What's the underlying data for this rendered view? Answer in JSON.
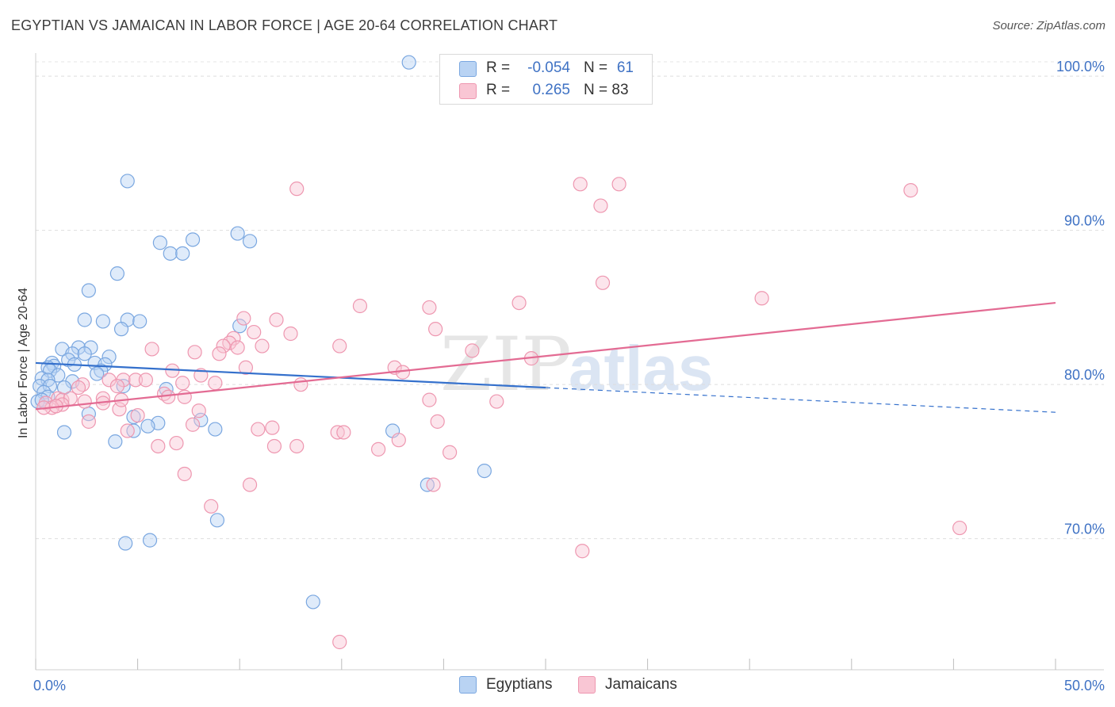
{
  "header": {
    "title": "EGYPTIAN VS JAMAICAN IN LABOR FORCE | AGE 20-64 CORRELATION CHART",
    "source": "Source: ZipAtlas.com"
  },
  "watermark": {
    "part1": "ZIP",
    "part2": "atlas"
  },
  "stats": [
    {
      "r_label": "R =",
      "r_value": "-0.054",
      "n_label": "N =",
      "n_value": "61",
      "fill": "#b9d3f3",
      "stroke": "#7aa7e0"
    },
    {
      "r_label": "R =",
      "r_value": "0.265",
      "n_label": "N = 83",
      "n_value": "",
      "fill": "#f9c6d4",
      "stroke": "#ee97b0"
    }
  ],
  "legend": [
    {
      "label": "Egyptians",
      "fill": "#b9d3f3",
      "stroke": "#7aa7e0"
    },
    {
      "label": "Jamaicans",
      "fill": "#f9c6d4",
      "stroke": "#ee97b0"
    }
  ],
  "chart_data": {
    "type": "scatter",
    "title": "EGYPTIAN VS JAMAICAN IN LABOR FORCE | AGE 20-64 CORRELATION CHART",
    "xlabel": "",
    "ylabel": "In Labor Force | Age 20-64",
    "xlim": [
      0,
      50
    ],
    "ylim": [
      61.5,
      101.5
    ],
    "grid": true,
    "legend_position": "bottom",
    "x_tick_labels": [
      {
        "value": 0,
        "label": "0.0%"
      },
      {
        "value": 50,
        "label": "50.0%"
      }
    ],
    "x_minor_ticks": [
      0,
      5,
      10,
      15,
      20,
      25,
      30,
      35,
      40,
      45,
      50
    ],
    "y_tick_labels": [
      {
        "value": 100,
        "label": "100.0%"
      },
      {
        "value": 90,
        "label": "90.0%"
      },
      {
        "value": 80,
        "label": "80.0%"
      },
      {
        "value": 70,
        "label": "70.0%"
      }
    ],
    "series": [
      {
        "name": "Egyptians",
        "color": "#7aa7e0",
        "fill": "#b9d3f3",
        "trend_color": "#3470cc",
        "trend": {
          "x0": 0,
          "y0": 81.4,
          "x1": 25,
          "y1": 79.8,
          "x_ext": 50,
          "y_ext": 78.2
        },
        "points": [
          [
            18.3,
            100.9
          ],
          [
            4.5,
            93.2
          ],
          [
            9.9,
            89.8
          ],
          [
            10.5,
            89.3
          ],
          [
            6.1,
            89.2
          ],
          [
            7.7,
            89.4
          ],
          [
            6.6,
            88.5
          ],
          [
            7.2,
            88.5
          ],
          [
            4.0,
            87.2
          ],
          [
            2.6,
            86.1
          ],
          [
            2.4,
            84.2
          ],
          [
            3.3,
            84.1
          ],
          [
            4.5,
            84.2
          ],
          [
            5.1,
            84.1
          ],
          [
            10.0,
            83.8
          ],
          [
            4.2,
            83.6
          ],
          [
            1.3,
            82.3
          ],
          [
            2.1,
            82.4
          ],
          [
            2.7,
            82.4
          ],
          [
            1.8,
            82.0
          ],
          [
            2.4,
            82.0
          ],
          [
            3.6,
            81.8
          ],
          [
            1.6,
            81.6
          ],
          [
            0.8,
            81.4
          ],
          [
            0.9,
            81.2
          ],
          [
            1.9,
            81.3
          ],
          [
            2.9,
            81.4
          ],
          [
            3.4,
            81.3
          ],
          [
            0.6,
            81.1
          ],
          [
            0.7,
            80.9
          ],
          [
            1.1,
            80.6
          ],
          [
            3.2,
            80.9
          ],
          [
            0.3,
            80.4
          ],
          [
            0.6,
            80.3
          ],
          [
            1.8,
            80.2
          ],
          [
            3.0,
            80.7
          ],
          [
            0.2,
            79.9
          ],
          [
            0.7,
            79.9
          ],
          [
            1.4,
            79.8
          ],
          [
            4.3,
            79.9
          ],
          [
            6.4,
            79.7
          ],
          [
            0.4,
            79.5
          ],
          [
            0.6,
            79.2
          ],
          [
            0.1,
            78.9
          ],
          [
            0.3,
            79.0
          ],
          [
            2.6,
            78.1
          ],
          [
            4.8,
            77.9
          ],
          [
            8.1,
            77.7
          ],
          [
            6.0,
            77.5
          ],
          [
            5.5,
            77.3
          ],
          [
            4.8,
            77.0
          ],
          [
            8.8,
            77.1
          ],
          [
            1.4,
            76.9
          ],
          [
            17.5,
            77.0
          ],
          [
            3.9,
            76.3
          ],
          [
            22.0,
            74.4
          ],
          [
            19.2,
            73.5
          ],
          [
            8.9,
            71.2
          ],
          [
            4.4,
            69.7
          ],
          [
            5.6,
            69.9
          ],
          [
            13.6,
            65.9
          ]
        ]
      },
      {
        "name": "Jamaicans",
        "color": "#ee97b0",
        "fill": "#f9c6d4",
        "trend_color": "#e36b93",
        "trend": {
          "x0": 0,
          "y0": 78.4,
          "x1": 50,
          "y1": 85.3
        },
        "points": [
          [
            26.7,
            93.0
          ],
          [
            28.6,
            93.0
          ],
          [
            12.8,
            92.7
          ],
          [
            42.9,
            92.6
          ],
          [
            27.7,
            91.6
          ],
          [
            27.8,
            86.6
          ],
          [
            35.6,
            85.6
          ],
          [
            23.7,
            85.3
          ],
          [
            15.9,
            85.1
          ],
          [
            19.3,
            85.0
          ],
          [
            10.2,
            84.3
          ],
          [
            11.8,
            84.2
          ],
          [
            19.6,
            83.6
          ],
          [
            10.7,
            83.4
          ],
          [
            12.5,
            83.3
          ],
          [
            9.7,
            83.0
          ],
          [
            9.5,
            82.7
          ],
          [
            9.2,
            82.5
          ],
          [
            11.1,
            82.5
          ],
          [
            14.9,
            82.5
          ],
          [
            5.7,
            82.3
          ],
          [
            21.4,
            82.2
          ],
          [
            7.8,
            82.1
          ],
          [
            9.0,
            82.0
          ],
          [
            24.3,
            81.7
          ],
          [
            17.6,
            81.1
          ],
          [
            10.3,
            81.1
          ],
          [
            6.7,
            80.9
          ],
          [
            18.0,
            80.8
          ],
          [
            8.1,
            80.6
          ],
          [
            3.6,
            80.3
          ],
          [
            4.3,
            80.3
          ],
          [
            4.9,
            80.3
          ],
          [
            5.4,
            80.3
          ],
          [
            7.2,
            80.1
          ],
          [
            8.8,
            80.1
          ],
          [
            13.0,
            80.0
          ],
          [
            2.3,
            80.0
          ],
          [
            4.0,
            79.9
          ],
          [
            2.1,
            79.8
          ],
          [
            6.3,
            79.4
          ],
          [
            6.5,
            79.2
          ],
          [
            7.3,
            79.2
          ],
          [
            1.1,
            79.1
          ],
          [
            1.3,
            79.0
          ],
          [
            1.7,
            79.1
          ],
          [
            3.3,
            79.1
          ],
          [
            0.5,
            78.8
          ],
          [
            1.3,
            78.7
          ],
          [
            2.4,
            78.9
          ],
          [
            0.8,
            78.5
          ],
          [
            0.4,
            78.5
          ],
          [
            3.3,
            78.8
          ],
          [
            22.6,
            78.9
          ],
          [
            19.3,
            79.0
          ],
          [
            4.1,
            78.4
          ],
          [
            5.0,
            78.0
          ],
          [
            8.0,
            78.3
          ],
          [
            2.6,
            77.6
          ],
          [
            7.7,
            77.4
          ],
          [
            19.7,
            77.6
          ],
          [
            10.9,
            77.1
          ],
          [
            11.6,
            77.2
          ],
          [
            14.8,
            76.9
          ],
          [
            15.1,
            76.9
          ],
          [
            4.5,
            77.0
          ],
          [
            6.0,
            76.0
          ],
          [
            6.9,
            76.2
          ],
          [
            11.7,
            76.0
          ],
          [
            12.8,
            76.0
          ],
          [
            16.8,
            75.8
          ],
          [
            17.8,
            76.4
          ],
          [
            20.3,
            75.6
          ],
          [
            7.3,
            74.2
          ],
          [
            10.5,
            73.5
          ],
          [
            19.5,
            73.5
          ],
          [
            8.6,
            72.1
          ],
          [
            26.8,
            69.2
          ],
          [
            45.3,
            70.7
          ],
          [
            14.9,
            63.3
          ],
          [
            4.2,
            79.0
          ],
          [
            1.0,
            78.6
          ],
          [
            9.9,
            82.4
          ]
        ]
      }
    ]
  }
}
